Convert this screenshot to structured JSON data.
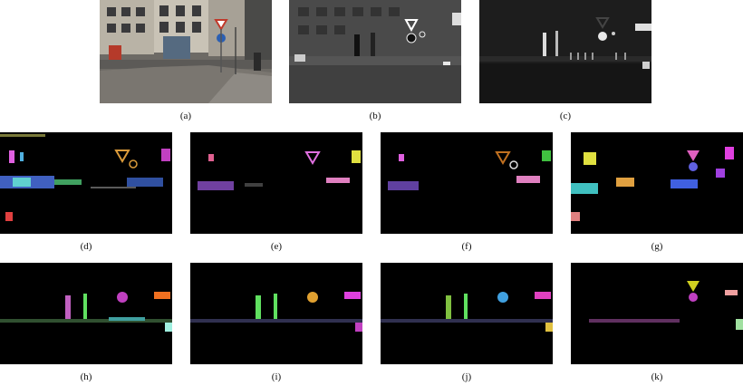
{
  "figure": {
    "captions": {
      "a": "(a)",
      "b": "(b)",
      "c": "(c)",
      "d": "(d)",
      "e": "(e)",
      "f": "(f)",
      "g": "(g)",
      "h": "(h)",
      "i": "(i)",
      "j": "(j)",
      "k": "(k)"
    }
  }
}
